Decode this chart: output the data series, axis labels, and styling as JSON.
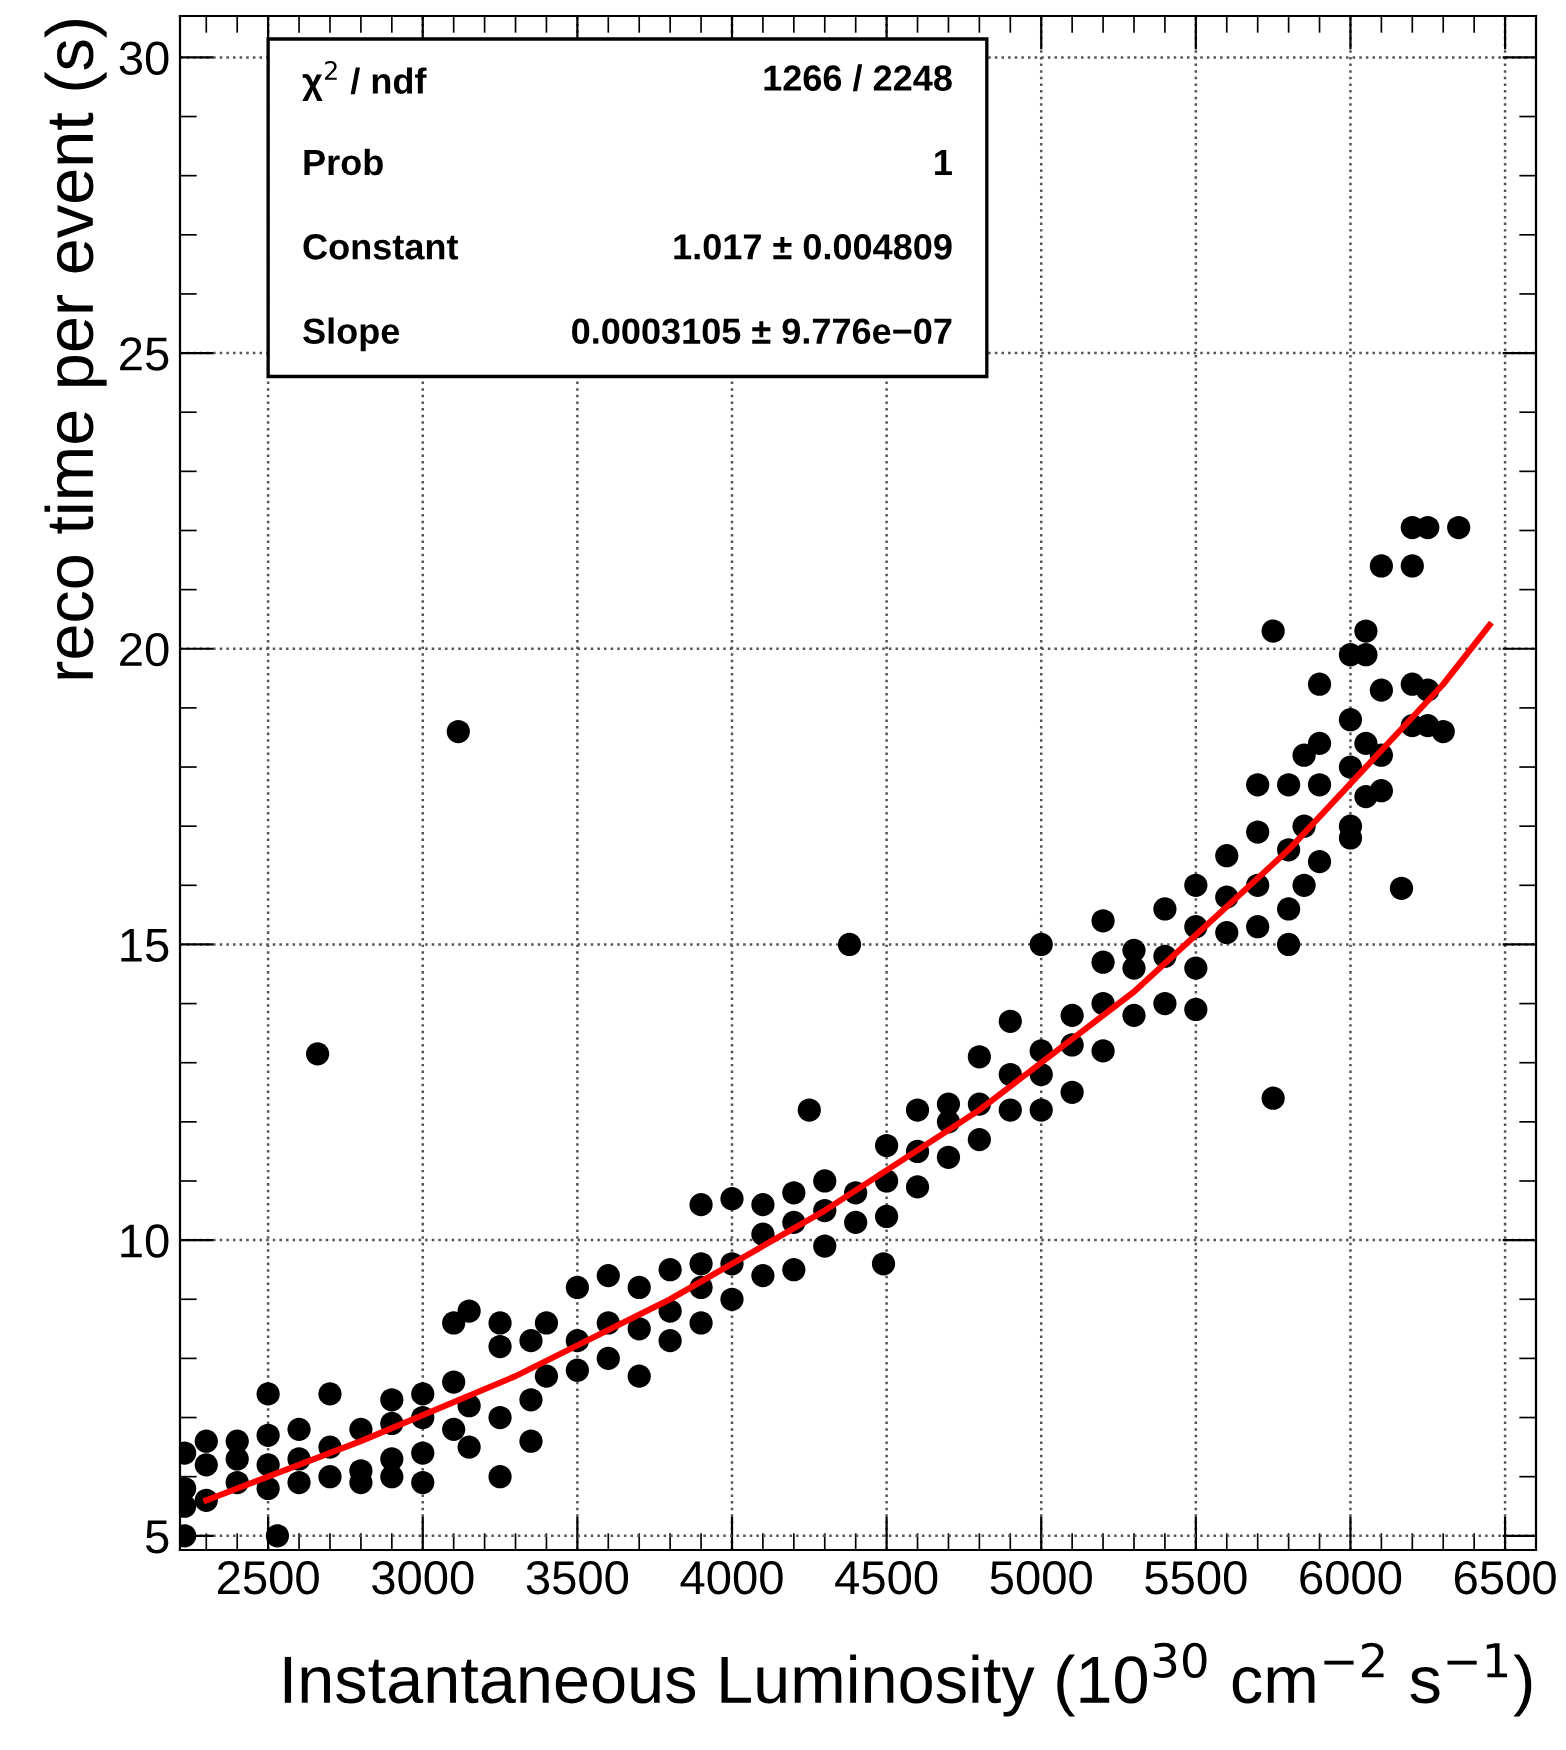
{
  "chart_data": {
    "type": "scatter",
    "xlabel": "Instantaneous Luminosity (10$^{30}$ cm$^{−2}$ s$^{−1}$)",
    "ylabel": "reco time per event (s)",
    "xlim": [
      2215,
      6600
    ],
    "ylim": [
      4.76,
      30.7
    ],
    "xticks": [
      2500,
      3000,
      3500,
      4000,
      4500,
      5000,
      5500,
      6000,
      6500
    ],
    "yticks": [
      5,
      10,
      15,
      20,
      25,
      30
    ],
    "grid": true,
    "marker": "circle",
    "legend": false,
    "annotations": [
      "χ$^{2}$ / ndf",
      "1266 / 2248",
      "Prob",
      "1",
      "Constant",
      "1.017 ± 0.004809",
      "Slope",
      "0.0003105 ± 9.776e−07"
    ],
    "series": [
      {
        "color": "#000000",
        "x": [
          3115,
          2660,
          4380,
          4250,
          4490,
          5750,
          5750,
          6165,
          6350,
          2530,
          2230,
          2230,
          2230,
          2230,
          2300,
          2300,
          2300,
          2400,
          2400,
          2400,
          2500,
          2500,
          2500,
          2500,
          2600,
          2600,
          2600,
          2700,
          2700,
          2700,
          2800,
          2800,
          2800,
          2900,
          2900,
          2900,
          2900,
          3000,
          3000,
          3000,
          3000,
          3100,
          3100,
          3100,
          3150,
          3150,
          3150,
          3250,
          3250,
          3250,
          3250,
          3350,
          3350,
          3350,
          3400,
          3400,
          3500,
          3500,
          3500,
          3600,
          3600,
          3600,
          3700,
          3700,
          3700,
          3800,
          3800,
          3800,
          3900,
          3900,
          3900,
          3900,
          4000,
          4000,
          4000,
          4100,
          4100,
          4100,
          4200,
          4200,
          4200,
          4300,
          4300,
          4300,
          4400,
          4400,
          4500,
          4500,
          4500,
          4600,
          4600,
          4600,
          4700,
          4700,
          4700,
          4800,
          4800,
          4800,
          4900,
          4900,
          4900,
          5000,
          5000,
          5000,
          5000,
          5100,
          5100,
          5100,
          5200,
          5200,
          5200,
          5200,
          5300,
          5300,
          5300,
          5400,
          5400,
          5400,
          5500,
          5500,
          5500,
          5500,
          5600,
          5600,
          5600,
          5700,
          5700,
          5700,
          5700,
          5800,
          5800,
          5800,
          5800,
          5850,
          5850,
          5850,
          5900,
          5900,
          5900,
          5900,
          6000,
          6000,
          6000,
          6000,
          6000,
          6050,
          6050,
          6050,
          6050,
          6100,
          6100,
          6100,
          6100,
          6200,
          6200,
          6200,
          6200,
          6250,
          6250,
          6250,
          6300
        ],
        "values": [
          18.6,
          13.15,
          15.0,
          12.2,
          9.6,
          12.4,
          20.3,
          15.95,
          22.05,
          5.0,
          5.0,
          5.5,
          5.8,
          6.4,
          5.6,
          6.2,
          6.6,
          5.9,
          6.3,
          6.6,
          5.8,
          6.2,
          6.7,
          7.4,
          5.9,
          6.3,
          6.8,
          6.0,
          6.5,
          7.4,
          6.1,
          6.8,
          5.9,
          6.3,
          6.9,
          7.3,
          6.0,
          6.4,
          7.0,
          7.4,
          5.9,
          6.8,
          7.6,
          8.6,
          6.5,
          7.2,
          8.8,
          6.0,
          7.0,
          8.2,
          8.6,
          6.6,
          7.3,
          8.3,
          7.7,
          8.6,
          7.8,
          8.3,
          9.2,
          8.0,
          8.6,
          9.4,
          7.7,
          8.5,
          9.2,
          8.3,
          8.8,
          9.5,
          8.6,
          9.2,
          10.6,
          9.6,
          9.0,
          9.6,
          10.7,
          9.4,
          10.1,
          10.6,
          9.5,
          10.3,
          10.8,
          9.9,
          10.5,
          11.0,
          10.3,
          10.8,
          10.4,
          11.0,
          11.6,
          10.9,
          11.5,
          12.2,
          11.4,
          12.0,
          12.3,
          11.7,
          12.3,
          13.1,
          12.2,
          12.8,
          13.7,
          12.2,
          12.8,
          13.2,
          15.0,
          12.5,
          13.3,
          13.8,
          13.2,
          14.0,
          14.7,
          15.4,
          13.8,
          14.6,
          14.9,
          14.0,
          14.8,
          15.6,
          14.6,
          15.3,
          16.0,
          13.9,
          15.2,
          15.8,
          16.5,
          15.3,
          16.0,
          16.9,
          17.7,
          15.6,
          16.6,
          17.7,
          15.0,
          16.0,
          17.0,
          18.2,
          16.4,
          17.7,
          18.4,
          19.4,
          17.0,
          18.0,
          18.8,
          19.9,
          16.8,
          17.5,
          18.4,
          19.9,
          20.3,
          17.6,
          18.2,
          19.3,
          21.4,
          18.7,
          19.4,
          21.4,
          22.05,
          18.7,
          19.3,
          22.05,
          18.6
        ]
      },
      {
        "type": "line",
        "color": "#ff0000",
        "marker": "none",
        "x": [
          2300,
          2800,
          3300,
          3800,
          4300,
          4800,
          5300,
          5800,
          6300,
          6450
        ],
        "values": [
          5.6,
          6.6,
          7.7,
          9.0,
          10.5,
          12.2,
          14.2,
          16.6,
          19.4,
          20.4
        ]
      }
    ]
  }
}
